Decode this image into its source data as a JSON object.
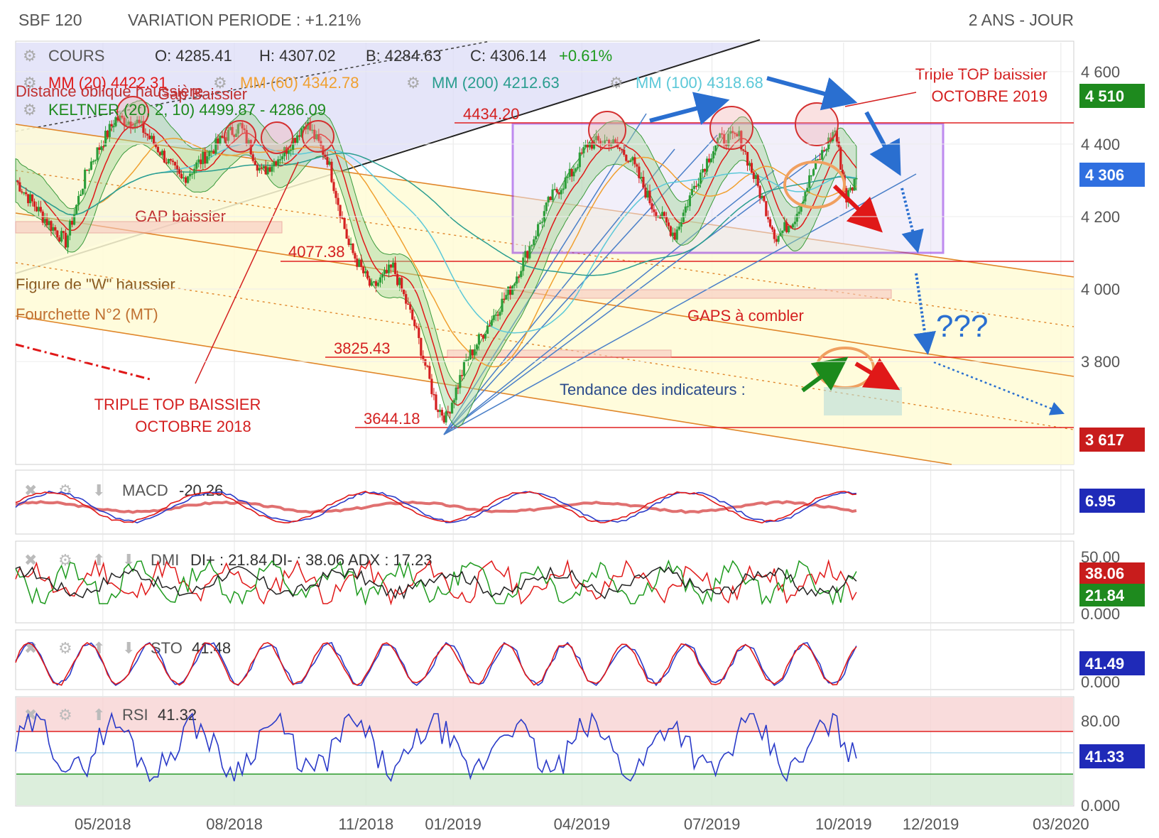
{
  "header": {
    "instrument": "SBF 120",
    "variation": "VARIATION PERIODE : +1.21%",
    "period": "2 ANS - JOUR"
  },
  "legend": {
    "cours_label": "COURS",
    "open": "O: 4285.41",
    "high": "H: 4307.02",
    "low": "B: 4284.63",
    "close": "C: 4306.14",
    "change": "+0.61%",
    "mm20": "MM (20) 4422.31",
    "mm60": "MM (60) 4342.78",
    "mm200": "MM (200) 4212.63",
    "mm100": "MM (100) 4318.68",
    "keltner": "KELTNER (20, 2, 10) 4499.87 - 4286.09"
  },
  "annotations": {
    "distance": "Distance oblique haussière",
    "gap_baissier_top": "Gap Baissier",
    "gap_baissier": "GAP baissier",
    "w_haussier": "Figure de \"W\" haussier",
    "fourchette": "Fourchette N°2 (MT)",
    "triple_top_2018_l1": "TRIPLE TOP BAISSIER",
    "triple_top_2018_l2": "OCTOBRE 2018",
    "triple_top_2019_l1": "Triple TOP baissier",
    "triple_top_2019_l2": "OCTOBRE 2019",
    "gaps": "GAPS à combler",
    "tendance": "Tendance des indicateurs :",
    "question": "???",
    "lvl_4434": "4434.20",
    "lvl_4077": "4077.38",
    "lvl_3825": "3825.43",
    "lvl_3644": "3644.18"
  },
  "badges": {
    "b4510": "4 510",
    "b4306": "4 306",
    "b3617": "3 617",
    "macd": "6.95",
    "di_minus": "38.06",
    "di_plus": "21.84",
    "sto": "41.49",
    "rsi": "41.33"
  },
  "panels": {
    "macd": "MACD",
    "macd_val": "-20.26",
    "dmi": "DMI",
    "dmi_val": "DI+ : 21.84 DI- : 38.06 ADX : 17.23",
    "sto": "STO",
    "sto_val": "41.48",
    "rsi": "RSI",
    "rsi_val": "41.32"
  },
  "colors": {
    "up": "#2e9e3a",
    "down": "#d42020",
    "badge_green": "#1e8a1e",
    "badge_blue": "#2f6fe0",
    "badge_red": "#c81c1c",
    "badge_navy": "#1f2ab8",
    "purple": "#8a2be2"
  },
  "chart_data": {
    "type": "candlestick",
    "title": "SBF 120",
    "period": "2 ANS - JOUR",
    "xlabels": [
      "05/2018",
      "08/2018",
      "11/2018",
      "01/2019",
      "04/2019",
      "07/2019",
      "10/2019",
      "12/2019",
      "03/2020"
    ],
    "price_axis": {
      "ticks": [
        "4 600",
        "4 400",
        "4 200",
        "4 000",
        "3 800"
      ],
      "ylim": [
        3520,
        4680
      ]
    },
    "indicator_axes": {
      "dmi": [
        "50.00",
        "0.000"
      ],
      "sto": [
        "0.000"
      ],
      "rsi": [
        "80.00",
        "0.000"
      ]
    },
    "price_path": [
      [
        "2018-03-01",
        4300
      ],
      [
        "2018-03-20",
        4200
      ],
      [
        "2018-04-05",
        4130
      ],
      [
        "2018-04-20",
        4330
      ],
      [
        "2018-05-10",
        4470
      ],
      [
        "2018-05-25",
        4460
      ],
      [
        "2018-06-10",
        4380
      ],
      [
        "2018-06-25",
        4300
      ],
      [
        "2018-07-10",
        4360
      ],
      [
        "2018-07-25",
        4420
      ],
      [
        "2018-08-05",
        4450
      ],
      [
        "2018-08-20",
        4320
      ],
      [
        "2018-09-05",
        4380
      ],
      [
        "2018-09-20",
        4460
      ],
      [
        "2018-10-05",
        4360
      ],
      [
        "2018-10-20",
        4120
      ],
      [
        "2018-11-05",
        4000
      ],
      [
        "2018-11-20",
        4060
      ],
      [
        "2018-12-05",
        3900
      ],
      [
        "2018-12-20",
        3680
      ],
      [
        "2018-12-27",
        3644
      ],
      [
        "2019-01-10",
        3800
      ],
      [
        "2019-01-25",
        3900
      ],
      [
        "2019-02-10",
        4000
      ],
      [
        "2019-02-25",
        4130
      ],
      [
        "2019-03-10",
        4250
      ],
      [
        "2019-03-25",
        4320
      ],
      [
        "2019-04-05",
        4400
      ],
      [
        "2019-04-20",
        4410
      ],
      [
        "2019-05-05",
        4360
      ],
      [
        "2019-05-20",
        4230
      ],
      [
        "2019-06-05",
        4150
      ],
      [
        "2019-06-20",
        4300
      ],
      [
        "2019-07-05",
        4410
      ],
      [
        "2019-07-20",
        4420
      ],
      [
        "2019-08-05",
        4250
      ],
      [
        "2019-08-15",
        4140
      ],
      [
        "2019-08-28",
        4200
      ],
      [
        "2019-09-10",
        4330
      ],
      [
        "2019-09-25",
        4440
      ],
      [
        "2019-10-03",
        4250
      ],
      [
        "2019-10-10",
        4306
      ]
    ],
    "levels": [
      4434.2,
      4077.38,
      3825.43,
      3644.18
    ],
    "last": {
      "open": 4285.41,
      "high": 4307.02,
      "low": 4284.63,
      "close": 4306.14,
      "change_pct": 0.61
    },
    "moving_averages": {
      "MM (20)": 4422.31,
      "MM (60)": 4342.78,
      "MM (100)": 4318.68,
      "MM (200)": 4212.63
    },
    "keltner": [
      4499.87,
      4286.09
    ],
    "indicators": {
      "MACD": -20.26,
      "DI+": 21.84,
      "DI-": 38.06,
      "ADX": 17.23,
      "STO": 41.48,
      "RSI": 41.32
    }
  }
}
